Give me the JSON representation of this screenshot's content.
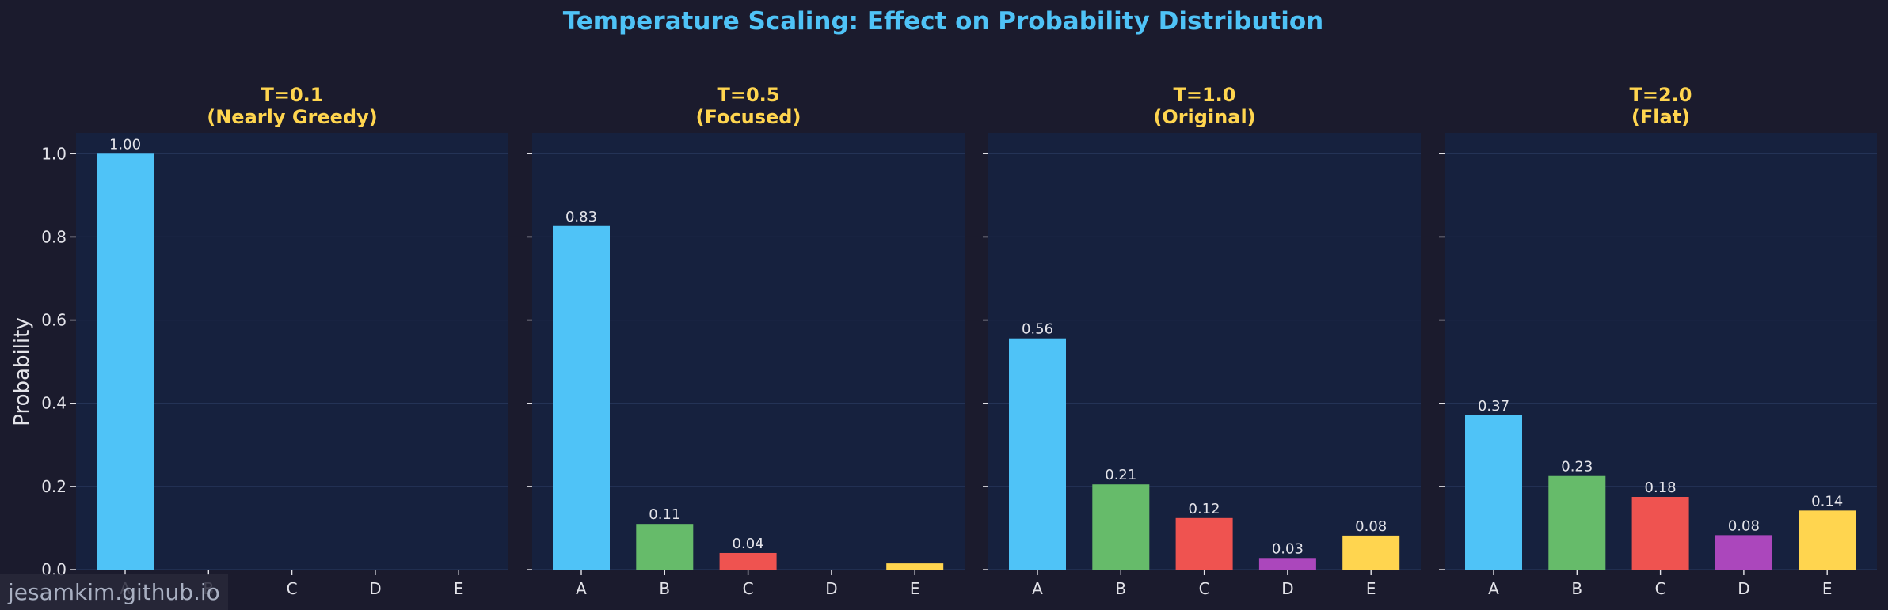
{
  "chart_data": {
    "type": "bar",
    "title": "Temperature Scaling: Effect on Probability Distribution",
    "ylabel": "Probability",
    "ylim": [
      0,
      1.05
    ],
    "yticks": [
      "0.0",
      "0.2",
      "0.4",
      "0.6",
      "0.8",
      "1.0"
    ],
    "categories": [
      "A",
      "B",
      "C",
      "D",
      "E"
    ],
    "bar_colors": [
      "#4fc3f7",
      "#66bb6a",
      "#ef5350",
      "#ab47bc",
      "#ffd54f"
    ],
    "panels": [
      {
        "title_line1": "T=0.1",
        "title_line2": "(Nearly Greedy)",
        "values": [
          1.0,
          0.0,
          0.0,
          0.0,
          0.0
        ],
        "labels": [
          "1.00",
          "",
          "",
          "",
          ""
        ]
      },
      {
        "title_line1": "T=0.5",
        "title_line2": "(Focused)",
        "values": [
          0.826,
          0.11,
          0.04,
          0.0,
          0.015
        ],
        "labels": [
          "0.83",
          "0.11",
          "0.04",
          "",
          ""
        ]
      },
      {
        "title_line1": "T=1.0",
        "title_line2": "(Original)",
        "values": [
          0.556,
          0.205,
          0.124,
          0.028,
          0.082
        ],
        "labels": [
          "0.56",
          "0.21",
          "0.12",
          "0.03",
          "0.08"
        ]
      },
      {
        "title_line1": "T=2.0",
        "title_line2": "(Flat)",
        "values": [
          0.371,
          0.225,
          0.175,
          0.083,
          0.142
        ],
        "labels": [
          "0.37",
          "0.23",
          "0.18",
          "0.08",
          "0.14"
        ]
      }
    ]
  },
  "colors": {
    "title": "#4fc3f7",
    "panel_title": "#ffd54f",
    "axes_bg": "#16213e",
    "grid": "#27365a",
    "tick_text": "#e4e4ea",
    "data_label": "#e4e4ea"
  },
  "watermark": "jesamkim.github.io"
}
